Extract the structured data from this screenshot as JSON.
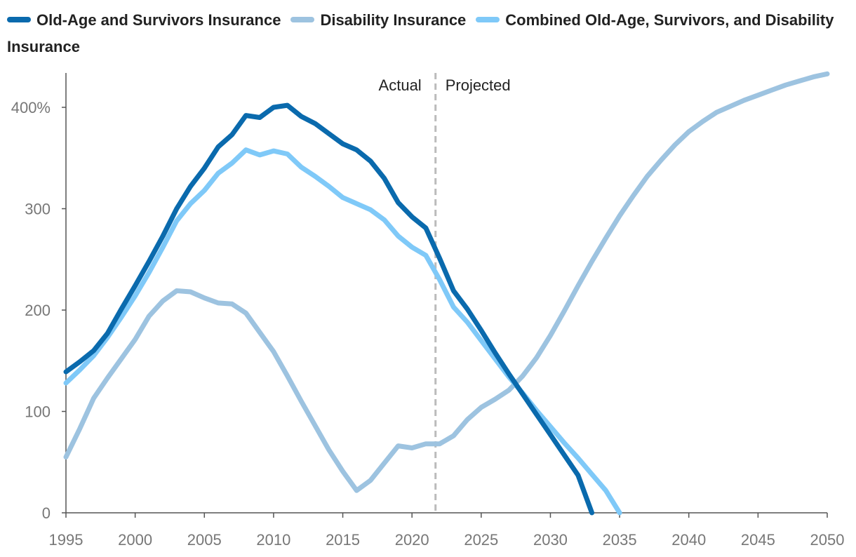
{
  "chart_data": {
    "type": "line",
    "title": "",
    "xlabel": "",
    "ylabel": "",
    "xlim": [
      1995,
      2050
    ],
    "ylim": [
      0,
      440
    ],
    "x_ticks": [
      1995,
      2000,
      2005,
      2010,
      2015,
      2020,
      2025,
      2030,
      2035,
      2040,
      2045,
      2050
    ],
    "y_ticks": [
      {
        "value": 0,
        "label": "0"
      },
      {
        "value": 100,
        "label": "100"
      },
      {
        "value": 200,
        "label": "200"
      },
      {
        "value": 300,
        "label": "300"
      },
      {
        "value": 400,
        "label": "400%"
      }
    ],
    "grid": false,
    "legend_position": "top-left",
    "divider": {
      "x": 2021.7,
      "left_label": "Actual",
      "right_label": "Projected"
    },
    "series": [
      {
        "name": "Old-Age and Survivors Insurance",
        "color": "#0a6aad",
        "x": [
          1995,
          1996,
          1997,
          1998,
          1999,
          2000,
          2001,
          2002,
          2003,
          2004,
          2005,
          2006,
          2007,
          2008,
          2009,
          2010,
          2011,
          2012,
          2013,
          2014,
          2015,
          2016,
          2017,
          2018,
          2019,
          2020,
          2021,
          2022,
          2023,
          2024,
          2025,
          2026,
          2027,
          2028,
          2029,
          2030,
          2031,
          2032,
          2033
        ],
        "values": [
          139,
          149,
          160,
          177,
          201,
          224,
          248,
          273,
          300,
          322,
          340,
          361,
          373,
          392,
          390,
          400,
          402,
          391,
          384,
          374,
          364,
          358,
          347,
          330,
          306,
          292,
          281,
          251,
          219,
          201,
          180,
          158,
          137,
          117,
          97,
          77,
          57,
          37,
          0
        ]
      },
      {
        "name": "Disability Insurance",
        "color": "#9dc3e0",
        "x": [
          1995,
          1996,
          1997,
          1998,
          1999,
          2000,
          2001,
          2002,
          2003,
          2004,
          2005,
          2006,
          2007,
          2008,
          2009,
          2010,
          2011,
          2012,
          2013,
          2014,
          2015,
          2016,
          2017,
          2018,
          2019,
          2020,
          2021,
          2022,
          2023,
          2024,
          2025,
          2026,
          2027,
          2028,
          2029,
          2030,
          2031,
          2032,
          2033,
          2034,
          2035,
          2036,
          2037,
          2038,
          2039,
          2040,
          2041,
          2042,
          2043,
          2044,
          2045,
          2046,
          2047,
          2048,
          2049,
          2050
        ],
        "values": [
          55,
          83,
          113,
          133,
          152,
          171,
          194,
          209,
          219,
          218,
          212,
          207,
          206,
          197,
          178,
          159,
          135,
          110,
          86,
          62,
          41,
          22,
          32,
          49,
          66,
          64,
          68,
          68,
          76,
          92,
          104,
          112,
          121,
          135,
          153,
          175,
          199,
          224,
          248,
          271,
          293,
          313,
          332,
          348,
          363,
          376,
          386,
          395,
          401,
          407,
          412,
          417,
          422,
          426,
          430,
          433
        ]
      },
      {
        "name": "Combined Old-Age, Survivors, and Disability Insurance",
        "color": "#7fc9f8",
        "x": [
          1995,
          1996,
          1997,
          1998,
          1999,
          2000,
          2001,
          2002,
          2003,
          2004,
          2005,
          2006,
          2007,
          2008,
          2009,
          2010,
          2011,
          2012,
          2013,
          2014,
          2015,
          2016,
          2017,
          2018,
          2019,
          2020,
          2021,
          2022,
          2023,
          2024,
          2025,
          2026,
          2027,
          2028,
          2029,
          2030,
          2031,
          2032,
          2033,
          2034,
          2035
        ],
        "values": [
          128,
          141,
          155,
          173,
          193,
          214,
          237,
          262,
          288,
          305,
          318,
          335,
          345,
          358,
          353,
          357,
          354,
          341,
          332,
          322,
          311,
          305,
          299,
          289,
          273,
          262,
          254,
          230,
          203,
          188,
          170,
          152,
          134,
          118,
          101,
          85,
          69,
          54,
          38,
          22,
          0
        ]
      }
    ]
  }
}
